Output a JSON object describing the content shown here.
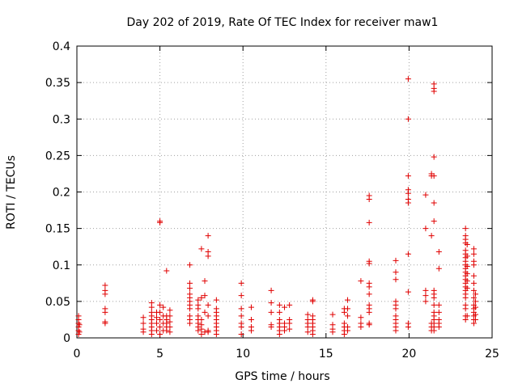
{
  "chart_data": {
    "type": "scatter",
    "title": "Day 202 of 2019, Rate Of TEC Index for receiver maw1",
    "xlabel": "GPS time / hours",
    "ylabel": "ROTI / TECUs",
    "xlim": [
      0,
      25
    ],
    "ylim": [
      0,
      0.4
    ],
    "xticks": [
      0,
      5,
      10,
      15,
      20,
      25
    ],
    "yticks": [
      0,
      0.05,
      0.1,
      0.15,
      0.2,
      0.25,
      0.3,
      0.35,
      0.4
    ],
    "xtick_labels": [
      "0",
      "5",
      "10",
      "15",
      "20",
      "25"
    ],
    "ytick_labels": [
      "0",
      "0.05",
      "0.1",
      "0.15",
      "0.2",
      "0.25",
      "0.3",
      "0.35",
      "0.4"
    ],
    "grid": true,
    "marker": "+",
    "color": "#e00000",
    "points": [
      [
        0.1,
        0.005
      ],
      [
        0.1,
        0.01
      ],
      [
        0.1,
        0.015
      ],
      [
        0.1,
        0.02
      ],
      [
        0.1,
        0.025
      ],
      [
        0.1,
        0.03
      ],
      [
        0.15,
        0.008
      ],
      [
        0.15,
        0.018
      ],
      [
        1.7,
        0.02
      ],
      [
        1.7,
        0.022
      ],
      [
        1.7,
        0.035
      ],
      [
        1.7,
        0.04
      ],
      [
        1.7,
        0.06
      ],
      [
        1.7,
        0.065
      ],
      [
        1.7,
        0.072
      ],
      [
        4.0,
        0.008
      ],
      [
        4.0,
        0.012
      ],
      [
        4.0,
        0.02
      ],
      [
        4.0,
        0.028
      ],
      [
        4.5,
        0.005
      ],
      [
        4.5,
        0.01
      ],
      [
        4.5,
        0.015
      ],
      [
        4.5,
        0.02
      ],
      [
        4.5,
        0.025
      ],
      [
        4.5,
        0.03
      ],
      [
        4.5,
        0.035
      ],
      [
        4.5,
        0.042
      ],
      [
        4.5,
        0.048
      ],
      [
        4.8,
        0.01
      ],
      [
        4.8,
        0.02
      ],
      [
        4.8,
        0.028
      ],
      [
        4.8,
        0.035
      ],
      [
        5.0,
        0.005
      ],
      [
        5.0,
        0.015
      ],
      [
        5.0,
        0.025
      ],
      [
        5.0,
        0.035
      ],
      [
        5.0,
        0.045
      ],
      [
        5.0,
        0.158
      ],
      [
        5.0,
        0.16
      ],
      [
        5.2,
        0.01
      ],
      [
        5.2,
        0.02
      ],
      [
        5.2,
        0.03
      ],
      [
        5.2,
        0.042
      ],
      [
        5.4,
        0.01
      ],
      [
        5.4,
        0.015
      ],
      [
        5.4,
        0.02
      ],
      [
        5.4,
        0.025
      ],
      [
        5.4,
        0.03
      ],
      [
        5.4,
        0.092
      ],
      [
        5.6,
        0.008
      ],
      [
        5.6,
        0.015
      ],
      [
        5.6,
        0.022
      ],
      [
        5.6,
        0.03
      ],
      [
        5.6,
        0.038
      ],
      [
        6.8,
        0.02
      ],
      [
        6.8,
        0.025
      ],
      [
        6.8,
        0.03
      ],
      [
        6.8,
        0.04
      ],
      [
        6.8,
        0.045
      ],
      [
        6.8,
        0.05
      ],
      [
        6.8,
        0.055
      ],
      [
        6.8,
        0.06
      ],
      [
        6.8,
        0.068
      ],
      [
        6.8,
        0.075
      ],
      [
        6.8,
        0.1
      ],
      [
        7.3,
        0.01
      ],
      [
        7.3,
        0.015
      ],
      [
        7.3,
        0.02
      ],
      [
        7.3,
        0.025
      ],
      [
        7.3,
        0.03
      ],
      [
        7.3,
        0.04
      ],
      [
        7.3,
        0.045
      ],
      [
        7.3,
        0.052
      ],
      [
        7.5,
        0.005
      ],
      [
        7.5,
        0.012
      ],
      [
        7.5,
        0.018
      ],
      [
        7.5,
        0.025
      ],
      [
        7.5,
        0.055
      ],
      [
        7.5,
        0.122
      ],
      [
        7.7,
        0.008
      ],
      [
        7.7,
        0.035
      ],
      [
        7.7,
        0.058
      ],
      [
        7.7,
        0.078
      ],
      [
        7.9,
        0.008
      ],
      [
        7.9,
        0.01
      ],
      [
        7.9,
        0.03
      ],
      [
        7.9,
        0.045
      ],
      [
        7.9,
        0.112
      ],
      [
        7.9,
        0.118
      ],
      [
        7.9,
        0.14
      ],
      [
        8.4,
        0.005
      ],
      [
        8.4,
        0.01
      ],
      [
        8.4,
        0.015
      ],
      [
        8.4,
        0.02
      ],
      [
        8.4,
        0.025
      ],
      [
        8.4,
        0.03
      ],
      [
        8.4,
        0.035
      ],
      [
        8.4,
        0.04
      ],
      [
        8.4,
        0.052
      ],
      [
        9.9,
        0.005
      ],
      [
        9.9,
        0.015
      ],
      [
        9.9,
        0.02
      ],
      [
        9.9,
        0.03
      ],
      [
        9.9,
        0.04
      ],
      [
        9.9,
        0.058
      ],
      [
        9.9,
        0.075
      ],
      [
        10.5,
        0.01
      ],
      [
        10.5,
        0.015
      ],
      [
        10.5,
        0.025
      ],
      [
        10.5,
        0.042
      ],
      [
        11.7,
        0.015
      ],
      [
        11.7,
        0.018
      ],
      [
        11.7,
        0.035
      ],
      [
        11.7,
        0.048
      ],
      [
        11.7,
        0.065
      ],
      [
        12.2,
        0.005
      ],
      [
        12.2,
        0.01
      ],
      [
        12.2,
        0.015
      ],
      [
        12.2,
        0.02
      ],
      [
        12.2,
        0.025
      ],
      [
        12.2,
        0.035
      ],
      [
        12.2,
        0.045
      ],
      [
        12.5,
        0.01
      ],
      [
        12.5,
        0.015
      ],
      [
        12.5,
        0.02
      ],
      [
        12.5,
        0.042
      ],
      [
        12.8,
        0.012
      ],
      [
        12.8,
        0.02
      ],
      [
        12.8,
        0.025
      ],
      [
        12.8,
        0.045
      ],
      [
        13.9,
        0.008
      ],
      [
        13.9,
        0.015
      ],
      [
        13.9,
        0.02
      ],
      [
        13.9,
        0.025
      ],
      [
        13.9,
        0.032
      ],
      [
        14.2,
        0.005
      ],
      [
        14.2,
        0.01
      ],
      [
        14.2,
        0.015
      ],
      [
        14.2,
        0.02
      ],
      [
        14.2,
        0.025
      ],
      [
        14.2,
        0.03
      ],
      [
        14.2,
        0.05
      ],
      [
        14.2,
        0.052
      ],
      [
        15.4,
        0.008
      ],
      [
        15.4,
        0.012
      ],
      [
        15.4,
        0.018
      ],
      [
        15.4,
        0.032
      ],
      [
        16.1,
        0.005
      ],
      [
        16.1,
        0.01
      ],
      [
        16.1,
        0.015
      ],
      [
        16.1,
        0.02
      ],
      [
        16.1,
        0.035
      ],
      [
        16.1,
        0.04
      ],
      [
        16.3,
        0.01
      ],
      [
        16.3,
        0.015
      ],
      [
        16.3,
        0.03
      ],
      [
        16.3,
        0.04
      ],
      [
        16.3,
        0.052
      ],
      [
        17.1,
        0.015
      ],
      [
        17.1,
        0.02
      ],
      [
        17.1,
        0.028
      ],
      [
        17.1,
        0.078
      ],
      [
        17.6,
        0.018
      ],
      [
        17.6,
        0.02
      ],
      [
        17.6,
        0.035
      ],
      [
        17.6,
        0.04
      ],
      [
        17.6,
        0.045
      ],
      [
        17.6,
        0.06
      ],
      [
        17.6,
        0.07
      ],
      [
        17.6,
        0.075
      ],
      [
        17.6,
        0.102
      ],
      [
        17.6,
        0.105
      ],
      [
        17.6,
        0.158
      ],
      [
        17.6,
        0.19
      ],
      [
        17.6,
        0.195
      ],
      [
        19.2,
        0.01
      ],
      [
        19.2,
        0.015
      ],
      [
        19.2,
        0.02
      ],
      [
        19.2,
        0.025
      ],
      [
        19.2,
        0.03
      ],
      [
        19.2,
        0.04
      ],
      [
        19.2,
        0.045
      ],
      [
        19.2,
        0.05
      ],
      [
        19.2,
        0.08
      ],
      [
        19.2,
        0.09
      ],
      [
        19.2,
        0.106
      ],
      [
        19.95,
        0.015
      ],
      [
        19.95,
        0.02
      ],
      [
        19.95,
        0.063
      ],
      [
        19.95,
        0.115
      ],
      [
        19.95,
        0.185
      ],
      [
        19.95,
        0.19
      ],
      [
        19.95,
        0.198
      ],
      [
        19.95,
        0.203
      ],
      [
        19.95,
        0.222
      ],
      [
        19.95,
        0.3
      ],
      [
        19.95,
        0.355
      ],
      [
        21.0,
        0.05
      ],
      [
        21.0,
        0.058
      ],
      [
        21.0,
        0.065
      ],
      [
        21.0,
        0.15
      ],
      [
        21.0,
        0.196
      ],
      [
        21.35,
        0.01
      ],
      [
        21.35,
        0.015
      ],
      [
        21.35,
        0.02
      ],
      [
        21.35,
        0.14
      ],
      [
        21.35,
        0.222
      ],
      [
        21.35,
        0.225
      ],
      [
        21.5,
        0.01
      ],
      [
        21.5,
        0.015
      ],
      [
        21.5,
        0.02
      ],
      [
        21.5,
        0.025
      ],
      [
        21.5,
        0.03
      ],
      [
        21.5,
        0.035
      ],
      [
        21.5,
        0.045
      ],
      [
        21.5,
        0.055
      ],
      [
        21.5,
        0.06
      ],
      [
        21.5,
        0.065
      ],
      [
        21.5,
        0.16
      ],
      [
        21.5,
        0.185
      ],
      [
        21.5,
        0.222
      ],
      [
        21.5,
        0.248
      ],
      [
        21.5,
        0.338
      ],
      [
        21.5,
        0.342
      ],
      [
        21.5,
        0.348
      ],
      [
        21.8,
        0.015
      ],
      [
        21.8,
        0.02
      ],
      [
        21.8,
        0.025
      ],
      [
        21.8,
        0.035
      ],
      [
        21.8,
        0.045
      ],
      [
        21.8,
        0.095
      ],
      [
        21.8,
        0.118
      ],
      [
        23.4,
        0.025
      ],
      [
        23.4,
        0.03
      ],
      [
        23.4,
        0.04
      ],
      [
        23.4,
        0.045
      ],
      [
        23.4,
        0.055
      ],
      [
        23.4,
        0.06
      ],
      [
        23.4,
        0.065
      ],
      [
        23.4,
        0.07
      ],
      [
        23.4,
        0.075
      ],
      [
        23.4,
        0.08
      ],
      [
        23.4,
        0.085
      ],
      [
        23.4,
        0.09
      ],
      [
        23.4,
        0.095
      ],
      [
        23.4,
        0.1
      ],
      [
        23.4,
        0.105
      ],
      [
        23.4,
        0.11
      ],
      [
        23.4,
        0.115
      ],
      [
        23.4,
        0.12
      ],
      [
        23.4,
        0.13
      ],
      [
        23.4,
        0.135
      ],
      [
        23.4,
        0.14
      ],
      [
        23.4,
        0.15
      ],
      [
        23.5,
        0.03
      ],
      [
        23.5,
        0.068
      ],
      [
        23.5,
        0.078
      ],
      [
        23.5,
        0.088
      ],
      [
        23.5,
        0.098
      ],
      [
        23.5,
        0.112
      ],
      [
        23.5,
        0.128
      ],
      [
        23.9,
        0.02
      ],
      [
        23.9,
        0.025
      ],
      [
        23.9,
        0.03
      ],
      [
        23.9,
        0.035
      ],
      [
        23.9,
        0.04
      ],
      [
        23.9,
        0.045
      ],
      [
        23.9,
        0.055
      ],
      [
        23.9,
        0.065
      ],
      [
        23.9,
        0.075
      ],
      [
        23.9,
        0.085
      ],
      [
        23.9,
        0.1
      ],
      [
        23.9,
        0.105
      ],
      [
        23.9,
        0.115
      ],
      [
        23.9,
        0.122
      ],
      [
        24.0,
        0.025
      ],
      [
        24.0,
        0.032
      ],
      [
        24.0,
        0.042
      ],
      [
        24.0,
        0.05
      ],
      [
        24.0,
        0.06
      ]
    ]
  }
}
